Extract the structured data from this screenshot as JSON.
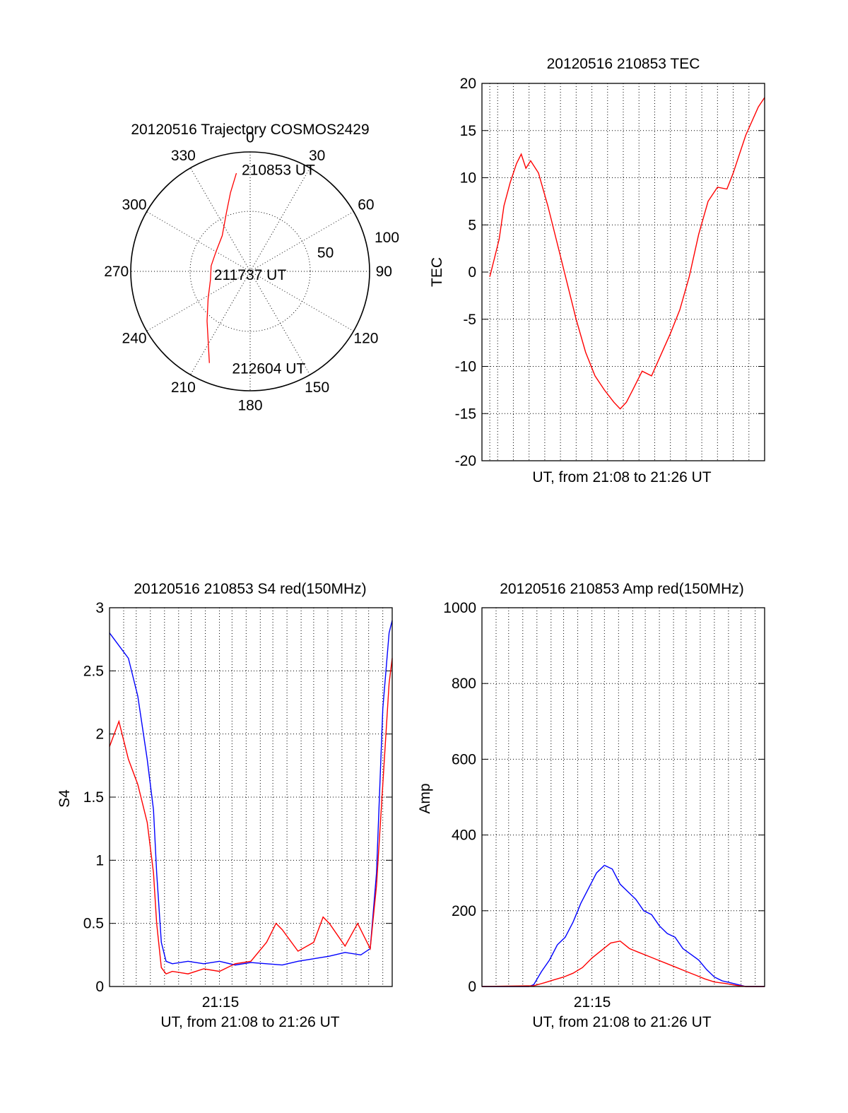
{
  "colors": {
    "red": "#ff0000",
    "blue": "#0000ff",
    "axis": "#000000"
  },
  "chart_data": [
    {
      "type": "polar",
      "title": "20120516 Trajectory COSMOS2429",
      "angle_labels": [
        {
          "angle": 0,
          "label": "0"
        },
        {
          "angle": 30,
          "label": "30"
        },
        {
          "angle": 60,
          "label": "60"
        },
        {
          "angle": 90,
          "label": "90"
        },
        {
          "angle": 120,
          "label": "120"
        },
        {
          "angle": 150,
          "label": "150"
        },
        {
          "angle": 180,
          "label": "180"
        },
        {
          "angle": 210,
          "label": "210"
        },
        {
          "angle": 240,
          "label": "240"
        },
        {
          "angle": 270,
          "label": "270"
        },
        {
          "angle": 300,
          "label": "300"
        },
        {
          "angle": 330,
          "label": "330"
        }
      ],
      "radial_labels": [
        {
          "r": 50,
          "label": "50"
        },
        {
          "r": 100,
          "label": "100"
        }
      ],
      "r_max": 100,
      "trajectory": [
        {
          "az": 352,
          "r": 83
        },
        {
          "az": 346,
          "r": 68
        },
        {
          "az": 338,
          "r": 53
        },
        {
          "az": 322,
          "r": 38
        },
        {
          "az": 300,
          "r": 33
        },
        {
          "az": 278,
          "r": 33
        },
        {
          "az": 258,
          "r": 34
        },
        {
          "az": 237,
          "r": 42
        },
        {
          "az": 221,
          "r": 55
        },
        {
          "az": 210,
          "r": 70
        },
        {
          "az": 204,
          "r": 84
        }
      ],
      "annotations": [
        {
          "text": "210853 UT",
          "az": 350,
          "r": 82
        },
        {
          "text": "211737 UT",
          "az": 270,
          "r": 0
        },
        {
          "text": "212604 UT",
          "az": 200,
          "r": 86
        }
      ]
    },
    {
      "type": "line",
      "title": "20120516 210853 TEC",
      "xlabel": "UT, from 21:08 to 21:26 UT",
      "ylabel": "TEC",
      "xlim": [
        0,
        18
      ],
      "ylim": [
        -20,
        20
      ],
      "yticks": [
        -20,
        -15,
        -10,
        -5,
        0,
        5,
        10,
        15,
        20
      ],
      "x_gridlines": [
        0.5,
        1,
        2,
        3,
        4,
        5,
        6,
        7,
        8,
        9,
        10,
        11,
        12,
        13,
        14,
        15,
        16,
        17
      ],
      "series": [
        {
          "name": "TEC",
          "color": "red",
          "x": [
            0.5,
            0.8,
            1.1,
            1.4,
            1.8,
            2.2,
            2.5,
            2.8,
            3.1,
            3.6,
            4.2,
            4.8,
            5.4,
            6.0,
            6.6,
            7.2,
            7.8,
            8.4,
            8.8,
            9.2,
            9.6,
            10.2,
            10.8,
            11.2,
            11.6,
            12.0,
            12.6,
            13.2,
            13.8,
            14.4,
            15.0,
            15.6,
            16.0,
            16.4,
            16.8,
            17.2,
            17.6,
            18.0
          ],
          "values": [
            -0.5,
            1.5,
            3.5,
            7.0,
            9.5,
            11.5,
            12.5,
            11.0,
            11.8,
            10.5,
            7.0,
            3.0,
            -1.0,
            -5.0,
            -8.5,
            -11.0,
            -12.5,
            -13.8,
            -14.5,
            -13.8,
            -12.5,
            -10.5,
            -11.0,
            -9.5,
            -8.0,
            -6.5,
            -4.0,
            -0.5,
            4.0,
            7.5,
            9.0,
            8.8,
            10.5,
            12.5,
            14.5,
            16.0,
            17.5,
            18.5
          ]
        }
      ]
    },
    {
      "type": "line",
      "title": "20120516 210853 S4 red(150MHz)",
      "xlabel": "UT, from 21:08 to 21:26 UT",
      "ylabel": "S4",
      "xtick_label": "21:15",
      "xlim": [
        0,
        18
      ],
      "ylim": [
        0,
        3
      ],
      "yticks": [
        0,
        0.5,
        1,
        1.5,
        2,
        2.5,
        3
      ],
      "x_gridlines": [
        0.9,
        1.7,
        2.6,
        3.5,
        4.4,
        5.2,
        6.1,
        7.0,
        7.8,
        8.7,
        9.6,
        10.4,
        11.3,
        12.2,
        13.0,
        13.9,
        14.8,
        15.7,
        16.5,
        17.4
      ],
      "series": [
        {
          "name": "blue",
          "color": "blue",
          "x": [
            0,
            0.6,
            1.2,
            1.8,
            2.4,
            2.8,
            3.0,
            3.3,
            3.6,
            4.0,
            5.0,
            6.0,
            7.0,
            8.0,
            9.0,
            10.0,
            11.0,
            12.0,
            13.0,
            14.0,
            15.0,
            16.0,
            16.6,
            17.0,
            17.4,
            17.8,
            18.0
          ],
          "values": [
            2.8,
            2.7,
            2.6,
            2.3,
            1.8,
            1.4,
            0.9,
            0.35,
            0.2,
            0.18,
            0.2,
            0.18,
            0.2,
            0.17,
            0.19,
            0.18,
            0.17,
            0.2,
            0.22,
            0.24,
            0.27,
            0.25,
            0.3,
            0.9,
            2.2,
            2.8,
            2.9
          ]
        },
        {
          "name": "red",
          "color": "red",
          "x": [
            0,
            0.6,
            1.2,
            1.8,
            2.4,
            2.8,
            3.0,
            3.3,
            3.6,
            4.0,
            5.0,
            6.0,
            7.0,
            8.0,
            9.0,
            10.0,
            10.6,
            11.0,
            12.0,
            13.0,
            13.6,
            14.0,
            15.0,
            15.8,
            16.6,
            17.0,
            17.4,
            17.8,
            18.0
          ],
          "values": [
            1.9,
            2.1,
            1.8,
            1.6,
            1.3,
            0.9,
            0.5,
            0.15,
            0.1,
            0.12,
            0.1,
            0.14,
            0.12,
            0.18,
            0.2,
            0.35,
            0.5,
            0.45,
            0.28,
            0.35,
            0.55,
            0.5,
            0.32,
            0.5,
            0.3,
            0.8,
            1.6,
            2.4,
            2.6
          ]
        }
      ]
    },
    {
      "type": "line",
      "title": "20120516 210853 Amp red(150MHz)",
      "xlabel": "UT, from 21:08 to 21:26 UT",
      "ylabel": "Amp",
      "xtick_label": "21:15",
      "xlim": [
        0,
        18
      ],
      "ylim": [
        0,
        1000
      ],
      "yticks": [
        0,
        200,
        400,
        600,
        800,
        1000
      ],
      "x_gridlines": [
        0.9,
        1.7,
        2.6,
        3.5,
        4.4,
        5.2,
        6.1,
        7.0,
        7.8,
        8.7,
        9.6,
        10.4,
        11.3,
        12.2,
        13.0,
        13.9,
        14.8,
        15.7,
        16.5,
        17.4
      ],
      "series": [
        {
          "name": "blue",
          "color": "blue",
          "x": [
            0,
            1,
            2,
            3,
            3.3,
            3.8,
            4.3,
            4.8,
            5.3,
            5.8,
            6.3,
            6.8,
            7.3,
            7.8,
            8.3,
            8.8,
            9.3,
            9.8,
            10.3,
            10.8,
            11.3,
            11.8,
            12.3,
            12.8,
            13.3,
            13.8,
            14.3,
            14.8,
            15.3,
            15.8,
            16.3,
            16.8,
            17.4,
            18
          ],
          "values": [
            0,
            0,
            0,
            0,
            5,
            40,
            70,
            110,
            130,
            170,
            220,
            260,
            300,
            320,
            310,
            270,
            250,
            230,
            200,
            190,
            160,
            140,
            130,
            100,
            85,
            70,
            45,
            25,
            15,
            10,
            5,
            0,
            0,
            0
          ]
        },
        {
          "name": "red",
          "color": "red",
          "x": [
            0,
            3.3,
            4.0,
            4.6,
            5.2,
            5.8,
            6.4,
            7.0,
            7.6,
            8.2,
            8.8,
            9.4,
            10.0,
            10.6,
            11.2,
            11.8,
            12.4,
            13.0,
            13.6,
            14.2,
            14.8,
            15.5,
            16.2,
            16.8,
            17.4,
            18
          ],
          "values": [
            0,
            2,
            10,
            18,
            25,
            35,
            50,
            75,
            95,
            115,
            120,
            100,
            90,
            80,
            70,
            60,
            50,
            40,
            30,
            20,
            12,
            8,
            3,
            0,
            0,
            0
          ]
        }
      ]
    }
  ]
}
